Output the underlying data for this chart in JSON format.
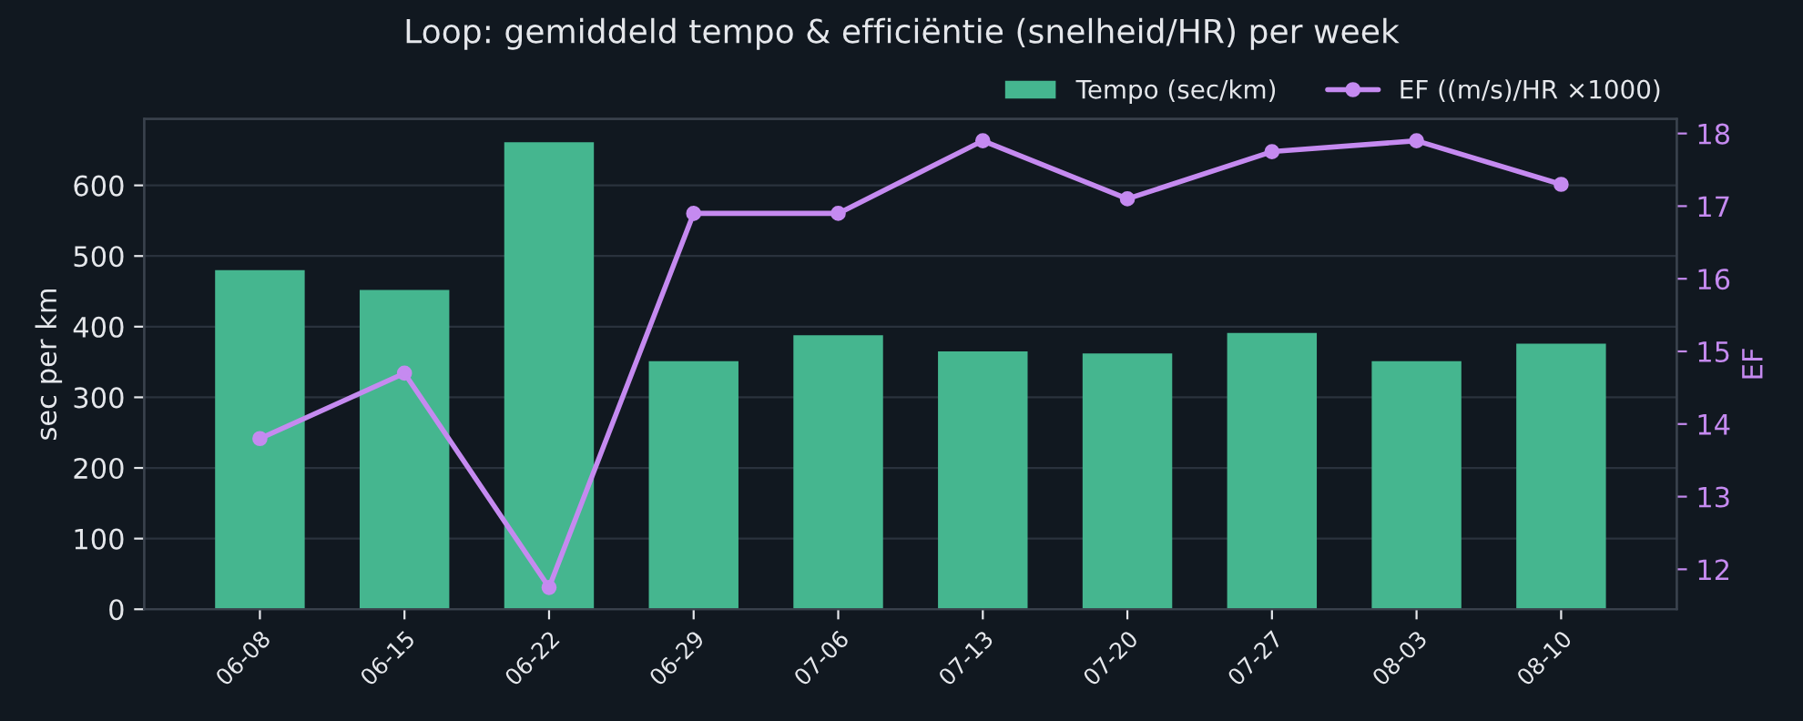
{
  "chart_data": {
    "type": "bar",
    "title": "Loop: gemiddeld tempo & efficiëntie (snelheid/HR) per week",
    "categories": [
      "06-08",
      "06-15",
      "06-22",
      "06-29",
      "07-06",
      "07-13",
      "07-20",
      "07-27",
      "08-03",
      "08-10"
    ],
    "series": [
      {
        "name": "Tempo (sec/km)",
        "color": "#45b68f",
        "values": [
          480,
          452,
          661,
          351,
          388,
          365,
          362,
          391,
          351,
          376
        ]
      },
      {
        "name": "EF ((m/s)/HR ×1000)",
        "type": "line",
        "axis": "y2",
        "color": "#c58af0",
        "values": [
          13.8,
          14.7,
          11.75,
          16.9,
          16.9,
          17.9,
          17.1,
          17.75,
          17.9,
          17.3
        ]
      }
    ],
    "ylabel": "sec per km",
    "y2label": "EF",
    "ylim": [
      0,
      694
    ],
    "yticks": [
      0,
      100,
      200,
      300,
      400,
      500,
      600
    ],
    "y2lim": [
      11.45,
      18.2
    ],
    "y2ticks": [
      12,
      13,
      14,
      15,
      16,
      17,
      18
    ],
    "grid": "y",
    "legend": "top right",
    "marker": "circle",
    "line_style": "solid"
  }
}
